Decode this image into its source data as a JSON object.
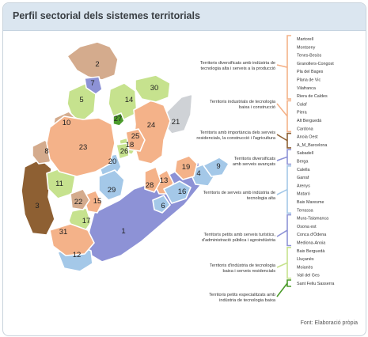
{
  "title": "Perfil sectorial dels sistemes territorials",
  "source": "Font: Elaboració pròpia",
  "colors": {
    "salmon": "#f4b289",
    "brown_light": "#d4ab8d",
    "brown_dark": "#8e6033",
    "lightgreen": "#c6e28e",
    "darkgreen": "#4c9c2c",
    "lightblue": "#a4c8e8",
    "blue": "#8d92d6",
    "gray": "#cfd2d6"
  },
  "regions": [
    {
      "num": "1",
      "color": "blue"
    },
    {
      "num": "2",
      "color": "brown_light"
    },
    {
      "num": "3",
      "color": "brown_dark"
    },
    {
      "num": "4",
      "color": "lightblue"
    },
    {
      "num": "5",
      "color": "lightgreen"
    },
    {
      "num": "6",
      "color": "lightblue"
    },
    {
      "num": "7",
      "color": "blue"
    },
    {
      "num": "8",
      "color": "brown_light"
    },
    {
      "num": "9",
      "color": "lightblue"
    },
    {
      "num": "10",
      "color": "brown_light"
    },
    {
      "num": "11",
      "color": "lightgreen"
    },
    {
      "num": "12",
      "color": "lightblue"
    },
    {
      "num": "13",
      "color": "salmon"
    },
    {
      "num": "14",
      "color": "lightgreen"
    },
    {
      "num": "15",
      "color": "salmon"
    },
    {
      "num": "16",
      "color": "lightblue"
    },
    {
      "num": "17",
      "color": "lightgreen"
    },
    {
      "num": "18",
      "color": "lightgreen"
    },
    {
      "num": "19",
      "color": "salmon"
    },
    {
      "num": "20",
      "color": "lightblue"
    },
    {
      "num": "21",
      "color": "gray"
    },
    {
      "num": "22",
      "color": "brown_light"
    },
    {
      "num": "23",
      "color": "salmon"
    },
    {
      "num": "24",
      "color": "salmon"
    },
    {
      "num": "25",
      "color": "salmon"
    },
    {
      "num": "26",
      "color": "lightgreen"
    },
    {
      "num": "27",
      "color": "darkgreen"
    },
    {
      "num": "28",
      "color": "salmon"
    },
    {
      "num": "29",
      "color": "lightblue"
    },
    {
      "num": "30",
      "color": "lightgreen"
    },
    {
      "num": "31",
      "color": "salmon"
    }
  ],
  "legend_names": [
    "Martorell",
    "Montseny",
    "Tenes-Besòs",
    "Granollers-Congost",
    "Pla del Bages",
    "Plana de Vic",
    "Vilafranca",
    "Riera de Caldes",
    "Calaf",
    "Piera",
    "Alt Berguedà",
    "Cardona",
    "Anoia Oest",
    "A_M_Barcelona",
    "Sabadell",
    "Berga",
    "Calella",
    "Garraf",
    "Arenys",
    "Mataró",
    "Baix Maresme",
    "Terrassa",
    "Mura-Talamanca",
    "Osona est",
    "Conca d'Òdena",
    "Mediona-Anoia",
    "Baix Berguedà",
    "Lluçanès",
    "Moianès",
    "Vall del Ges",
    "Sant Feliu Sasserra"
  ],
  "legend_groups": [
    {
      "lines": [
        "Territoris diversificats amb indústria de",
        "tecnologia alta i serveis a la producció"
      ],
      "color": "salmon"
    },
    {
      "lines": [
        "Territoris industrials de tecnologia",
        "baixa i construcció"
      ],
      "color": "salmon"
    },
    {
      "lines": [
        "Territoris amb importància dels serveis",
        "residencials, la construcció i l'agricultura"
      ],
      "color": "brown_dark"
    },
    {
      "lines": [
        "Territoris diversificats",
        "amb serveis avançats"
      ],
      "color": "blue"
    },
    {
      "lines": [
        "Territoris de serveis amb indústria de",
        "tecnologia alta"
      ],
      "color": "lightblue"
    },
    {
      "lines": [
        "Territoris petits amb serveis turístics,",
        "d'administració pública i agroindústria"
      ],
      "color": "blue"
    },
    {
      "lines": [
        "Territoris d'indústria de tecnologia",
        "baixa i serveis residencials"
      ],
      "color": "lightgreen"
    },
    {
      "lines": [
        "Territoris petits especialitzats amb",
        "indústria de tecnologia baixa"
      ],
      "color": "darkgreen"
    }
  ]
}
